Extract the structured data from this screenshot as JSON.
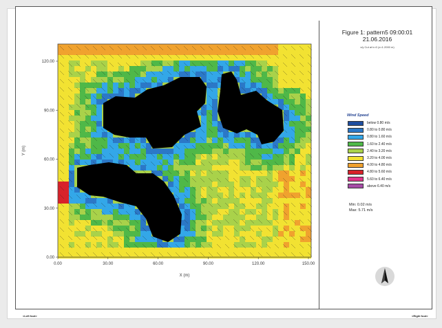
{
  "figure": {
    "title_line1": "Figure 1: pattern5 09:00:01",
    "title_line2": "21.06.2016",
    "subtitle": "x/y Cut at k=0 (z=1.2000 m)"
  },
  "legend": {
    "title": "Wind Speed",
    "items": [
      {
        "label": "below 0.80 m/s",
        "color": "#1f4e9f"
      },
      {
        "label": "0.80 to 0.80 m/s",
        "color": "#2b78c7"
      },
      {
        "label": "0.80 to 1.60 m/s",
        "color": "#33a7e8"
      },
      {
        "label": "1.60 to 2.40 m/s",
        "color": "#4fb848"
      },
      {
        "label": "2.40 to 3.20 m/s",
        "color": "#a9d24a"
      },
      {
        "label": "3.20 to 4.00 m/s",
        "color": "#f2e232"
      },
      {
        "label": "4.00 to 4.80 m/s",
        "color": "#f0a22e"
      },
      {
        "label": "4.80 to 5.60 m/s",
        "color": "#d8222a"
      },
      {
        "label": "5.60 to 6.40 m/s",
        "color": "#e0358b"
      },
      {
        "label": "above 6.40 m/s",
        "color": "#a64ca6"
      }
    ]
  },
  "stats": {
    "min": "Min: 0.02 m/s",
    "max": "Max: 5.71 m/s"
  },
  "axes": {
    "xlabel": "X (m)",
    "ylabel": "Y (m)",
    "x_ticks": [
      "0.00",
      "30.00",
      "60.00",
      "90.00",
      "120.00",
      "150.00"
    ],
    "y_ticks": [
      "0.00",
      "30.00",
      "60.00",
      "90.00",
      "120.00"
    ]
  },
  "footer": {
    "left": "<Left foot>",
    "right": "<Right foot>"
  },
  "icons": {
    "north_arrow": "north-arrow-icon"
  }
}
